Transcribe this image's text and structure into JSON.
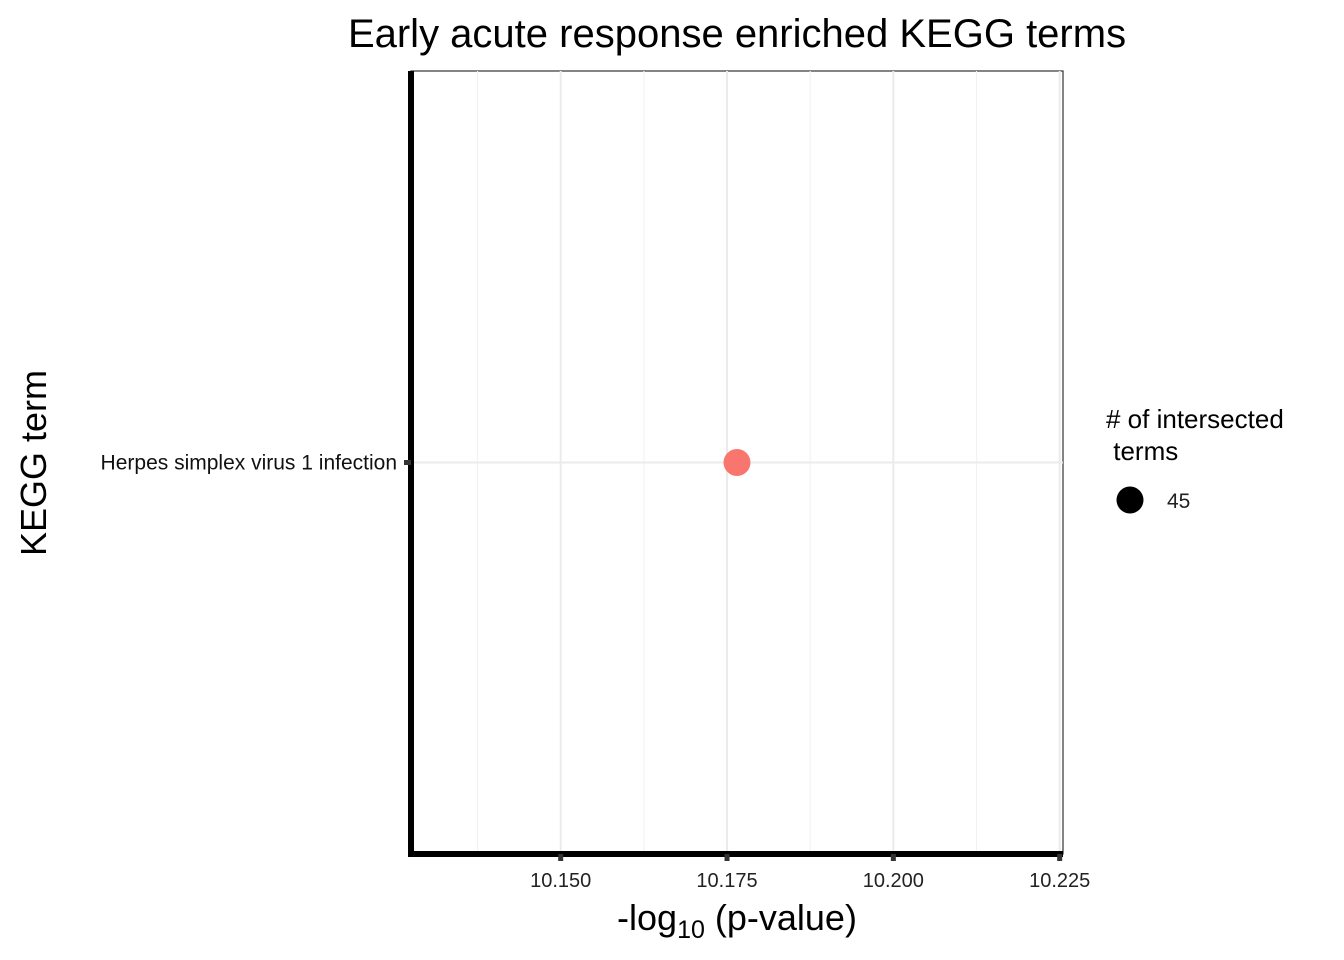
{
  "chart_data": {
    "type": "scatter",
    "title": "Early acute response enriched KEGG terms",
    "xlabel_base": "-log",
    "xlabel_sub": "10",
    "xlabel_rest": " (p-value)",
    "ylabel": "KEGG term",
    "xlim": [
      10.1275,
      10.2255
    ],
    "x_ticks": [
      10.15,
      10.175,
      10.2,
      10.225
    ],
    "x_tick_labels": [
      "10.150",
      "10.175",
      "10.200",
      "10.225"
    ],
    "x_minor_ticks": [
      10.1375,
      10.1625,
      10.1875,
      10.2125
    ],
    "categories": [
      "Herpes simplex virus 1 infection"
    ],
    "points": [
      {
        "term": "Herpes simplex virus 1 infection",
        "x": 10.1765,
        "size": 45,
        "color": "#f8766d"
      }
    ],
    "legend": {
      "title_line1": "# of intersected",
      "title_line2": " terms",
      "placement": "right",
      "items": [
        {
          "label": "45",
          "size": 45,
          "color": "#000000"
        }
      ]
    },
    "grid": true
  }
}
